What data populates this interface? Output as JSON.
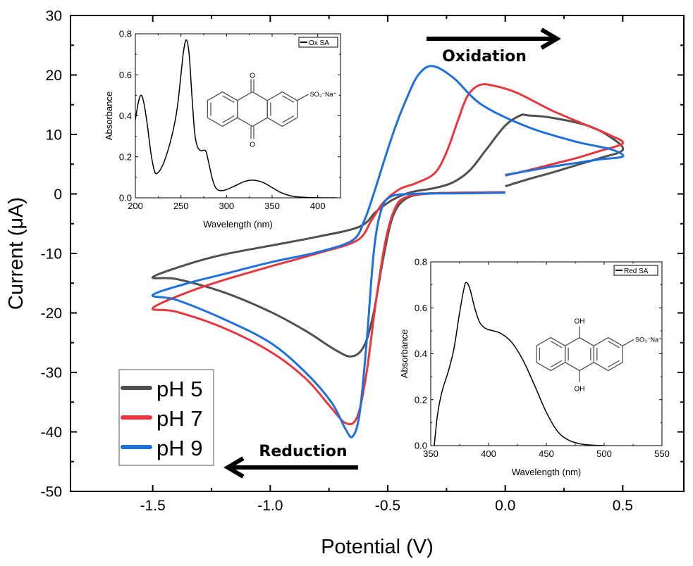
{
  "chart_data": [
    {
      "type": "line",
      "xlabel": "Potential (V)",
      "ylabel": "Current (μA)",
      "xlim": [
        -1.85,
        0.76
      ],
      "ylim": [
        -50,
        30
      ],
      "xticks": [
        -1.5,
        -1.0,
        -0.5,
        0.0,
        0.5
      ],
      "xtick_labels": [
        "-1.5",
        "-1.0",
        "-0.5",
        "0.0",
        "0.5"
      ],
      "yticks": [
        -50,
        -40,
        -30,
        -20,
        -10,
        0,
        10,
        20,
        30
      ],
      "ytick_labels": [
        "-50",
        "-40",
        "-30",
        "-20",
        "-10",
        "0",
        "10",
        "20",
        "30"
      ],
      "grid": false,
      "legend_placement": "bottom-left",
      "annotations": [
        {
          "text": "Oxidation",
          "arrow": "right"
        },
        {
          "text": "Reduction",
          "arrow": "left"
        }
      ],
      "series": [
        {
          "name": "pH 5",
          "color": "#505050",
          "points": [
            [
              0.0,
              1.3
            ],
            [
              0.1,
              2.5
            ],
            [
              0.2,
              3.6
            ],
            [
              0.3,
              4.8
            ],
            [
              0.4,
              6.0
            ],
            [
              0.5,
              7.4
            ],
            [
              0.45,
              9.5
            ],
            [
              0.35,
              11.5
            ],
            [
              0.2,
              12.8
            ],
            [
              0.1,
              13.2
            ],
            [
              0.064,
              13.2
            ],
            [
              0.0,
              11.5
            ],
            [
              -0.08,
              7.5
            ],
            [
              -0.15,
              4.0
            ],
            [
              -0.22,
              2.0
            ],
            [
              -0.3,
              1.0
            ],
            [
              -0.4,
              0.3
            ],
            [
              -0.48,
              -1.0
            ],
            [
              -0.55,
              -3.0
            ],
            [
              -0.62,
              -5.5
            ],
            [
              -0.8,
              -7.2
            ],
            [
              -1.0,
              -8.7
            ],
            [
              -1.2,
              -10.2
            ],
            [
              -1.35,
              -11.8
            ],
            [
              -1.5,
              -14.0
            ],
            [
              -1.4,
              -14.3
            ],
            [
              -1.2,
              -16.5
            ],
            [
              -1.0,
              -19.8
            ],
            [
              -0.85,
              -23.0
            ],
            [
              -0.72,
              -26.3
            ],
            [
              -0.652,
              -27.3
            ],
            [
              -0.6,
              -25.5
            ],
            [
              -0.56,
              -20.0
            ],
            [
              -0.52,
              -11.0
            ],
            [
              -0.48,
              -4.0
            ],
            [
              -0.43,
              -1.0
            ],
            [
              -0.35,
              0.0
            ],
            [
              -0.2,
              0.2
            ],
            [
              0.0,
              0.3
            ]
          ]
        },
        {
          "name": "pH 7",
          "color": "#e8383d",
          "points": [
            [
              0.0,
              3.1
            ],
            [
              0.1,
              4.0
            ],
            [
              0.2,
              5.0
            ],
            [
              0.3,
              6.0
            ],
            [
              0.4,
              7.2
            ],
            [
              0.5,
              8.5
            ],
            [
              0.45,
              9.8
            ],
            [
              0.35,
              11.5
            ],
            [
              0.2,
              14.0
            ],
            [
              0.05,
              17.0
            ],
            [
              -0.05,
              18.2
            ],
            [
              -0.11,
              18.3
            ],
            [
              -0.16,
              16.5
            ],
            [
              -0.2,
              12.5
            ],
            [
              -0.25,
              7.0
            ],
            [
              -0.3,
              3.5
            ],
            [
              -0.38,
              1.8
            ],
            [
              -0.45,
              0.8
            ],
            [
              -0.52,
              -1.5
            ],
            [
              -0.57,
              -4.5
            ],
            [
              -0.63,
              -7.8
            ],
            [
              -0.8,
              -10.0
            ],
            [
              -1.0,
              -12.2
            ],
            [
              -1.2,
              -14.5
            ],
            [
              -1.35,
              -16.5
            ],
            [
              -1.5,
              -19.2
            ],
            [
              -1.4,
              -19.8
            ],
            [
              -1.2,
              -22.5
            ],
            [
              -1.0,
              -26.5
            ],
            [
              -0.85,
              -31.0
            ],
            [
              -0.75,
              -35.5
            ],
            [
              -0.68,
              -38.5
            ],
            [
              -0.63,
              -37.5
            ],
            [
              -0.59,
              -30.0
            ],
            [
              -0.55,
              -18.0
            ],
            [
              -0.51,
              -8.0
            ],
            [
              -0.47,
              -2.5
            ],
            [
              -0.42,
              -0.5
            ],
            [
              -0.3,
              0.1
            ],
            [
              -0.15,
              0.2
            ],
            [
              0.0,
              0.3
            ]
          ]
        },
        {
          "name": "pH 9",
          "color": "#1f6fdc",
          "points": [
            [
              0.0,
              3.2
            ],
            [
              0.1,
              3.9
            ],
            [
              0.2,
              4.6
            ],
            [
              0.3,
              5.2
            ],
            [
              0.4,
              5.8
            ],
            [
              0.5,
              6.3
            ],
            [
              0.45,
              7.5
            ],
            [
              0.3,
              8.8
            ],
            [
              0.1,
              11.2
            ],
            [
              -0.1,
              15.0
            ],
            [
              -0.22,
              19.5
            ],
            [
              -0.31,
              21.5
            ],
            [
              -0.37,
              20.0
            ],
            [
              -0.42,
              16.0
            ],
            [
              -0.47,
              11.0
            ],
            [
              -0.52,
              5.0
            ],
            [
              -0.56,
              0.0
            ],
            [
              -0.6,
              -4.5
            ],
            [
              -0.65,
              -7.8
            ],
            [
              -0.8,
              -9.8
            ],
            [
              -1.0,
              -11.5
            ],
            [
              -1.2,
              -13.5
            ],
            [
              -1.35,
              -15.0
            ],
            [
              -1.5,
              -17.0
            ],
            [
              -1.4,
              -17.8
            ],
            [
              -1.2,
              -21.0
            ],
            [
              -1.0,
              -25.0
            ],
            [
              -0.85,
              -30.0
            ],
            [
              -0.74,
              -35.0
            ],
            [
              -0.68,
              -39.5
            ],
            [
              -0.65,
              -40.8
            ],
            [
              -0.62,
              -37.0
            ],
            [
              -0.59,
              -25.0
            ],
            [
              -0.56,
              -10.0
            ],
            [
              -0.53,
              -3.0
            ],
            [
              -0.49,
              -0.5
            ],
            [
              -0.4,
              0.0
            ],
            [
              -0.2,
              0.1
            ],
            [
              0.0,
              0.2
            ]
          ]
        }
      ]
    },
    {
      "type": "line",
      "xlabel": "Wavelength (nm)",
      "ylabel": "Absorbance",
      "xlim": [
        200,
        425
      ],
      "ylim": [
        0.0,
        0.8
      ],
      "xticks": [
        200,
        250,
        300,
        350,
        400
      ],
      "xtick_labels": [
        "200",
        "250",
        "300",
        "350",
        "400"
      ],
      "yticks": [
        0.0,
        0.2,
        0.4,
        0.6,
        0.8
      ],
      "ytick_labels": [
        "0.0",
        "0.2",
        "0.4",
        "0.6",
        "0.8"
      ],
      "legend_placement": "top-right",
      "structure_labels": {
        "top": "O",
        "bottom": "O",
        "substituent": "SO₃⁻Na⁺"
      },
      "series": [
        {
          "name": "Ox SA",
          "color": "#000000",
          "points": [
            [
              200,
              0.38
            ],
            [
              203,
              0.46
            ],
            [
              206,
              0.5
            ],
            [
              209,
              0.47
            ],
            [
              213,
              0.36
            ],
            [
              217,
              0.22
            ],
            [
              221,
              0.13
            ],
            [
              224,
              0.12
            ],
            [
              229,
              0.15
            ],
            [
              235,
              0.22
            ],
            [
              241,
              0.32
            ],
            [
              246,
              0.44
            ],
            [
              250,
              0.6
            ],
            [
              253,
              0.72
            ],
            [
              256,
              0.77
            ],
            [
              259,
              0.7
            ],
            [
              262,
              0.5
            ],
            [
              265,
              0.32
            ],
            [
              268,
              0.25
            ],
            [
              272,
              0.23
            ],
            [
              277,
              0.23
            ],
            [
              280,
              0.18
            ],
            [
              284,
              0.1
            ],
            [
              288,
              0.05
            ],
            [
              293,
              0.035
            ],
            [
              300,
              0.04
            ],
            [
              310,
              0.06
            ],
            [
              320,
              0.08
            ],
            [
              330,
              0.086
            ],
            [
              340,
              0.075
            ],
            [
              350,
              0.05
            ],
            [
              360,
              0.025
            ],
            [
              370,
              0.01
            ],
            [
              380,
              0.004
            ],
            [
              395,
              0.001
            ],
            [
              420,
              0.0
            ]
          ]
        }
      ]
    },
    {
      "type": "line",
      "xlabel": "Wavelength (nm)",
      "ylabel": "Absorbance",
      "xlim": [
        350,
        550
      ],
      "ylim": [
        0.0,
        0.8
      ],
      "xticks": [
        350,
        400,
        450,
        500,
        550
      ],
      "xtick_labels": [
        "350",
        "400",
        "450",
        "500",
        "550"
      ],
      "yticks": [
        0.0,
        0.2,
        0.4,
        0.6,
        0.8
      ],
      "ytick_labels": [
        "0.0",
        "0.2",
        "0.4",
        "0.6",
        "0.8"
      ],
      "legend_placement": "top-right",
      "structure_labels": {
        "top": "OH",
        "bottom": "OH",
        "substituent": "SO₃⁻Na⁺"
      },
      "series": [
        {
          "name": "Red SA",
          "color": "#000000",
          "points": [
            [
              353,
              0.0
            ],
            [
              356,
              0.14
            ],
            [
              360,
              0.24
            ],
            [
              365,
              0.32
            ],
            [
              370,
              0.42
            ],
            [
              375,
              0.58
            ],
            [
              379,
              0.69
            ],
            [
              381,
              0.71
            ],
            [
              384,
              0.68
            ],
            [
              388,
              0.6
            ],
            [
              392,
              0.54
            ],
            [
              396,
              0.515
            ],
            [
              400,
              0.505
            ],
            [
              410,
              0.49
            ],
            [
              420,
              0.45
            ],
            [
              430,
              0.37
            ],
            [
              440,
              0.26
            ],
            [
              450,
              0.145
            ],
            [
              460,
              0.06
            ],
            [
              470,
              0.022
            ],
            [
              480,
              0.007
            ],
            [
              490,
              0.002
            ],
            [
              500,
              0.0
            ]
          ]
        }
      ]
    }
  ]
}
